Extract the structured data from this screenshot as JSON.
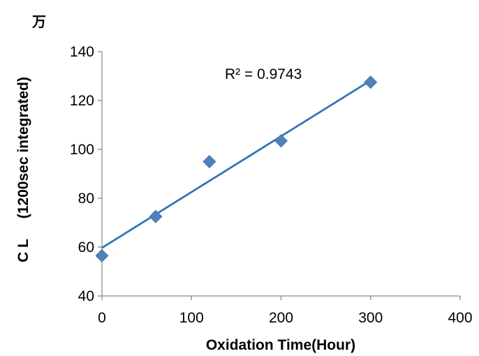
{
  "chart_data": {
    "type": "scatter",
    "title": "",
    "unit_label": "万",
    "xlabel": "Oxidation Time(Hour)",
    "ylabel": "C L     (1200sec integrated)",
    "xlim": [
      0,
      400
    ],
    "ylim": [
      40,
      140
    ],
    "xticks": [
      0,
      100,
      200,
      300,
      400
    ],
    "yticks": [
      40,
      60,
      80,
      100,
      120,
      140
    ],
    "x_tick_labels": [
      "0",
      "100",
      "200",
      "300",
      "400"
    ],
    "y_tick_labels": [
      "40",
      "60",
      "80",
      "100",
      "120",
      "140"
    ],
    "grid": false,
    "series": [
      {
        "x": [
          0,
          60,
          120,
          200,
          300
        ],
        "y": [
          56.5,
          72.5,
          95,
          103.5,
          127.5
        ],
        "marker": "diamond",
        "color": "#4f81bd"
      }
    ],
    "trendline": {
      "type": "linear",
      "color": "#2e75b6",
      "start": [
        0,
        59.7
      ],
      "end": [
        300,
        128.2
      ]
    },
    "annotation": "R² = 0.9743"
  }
}
